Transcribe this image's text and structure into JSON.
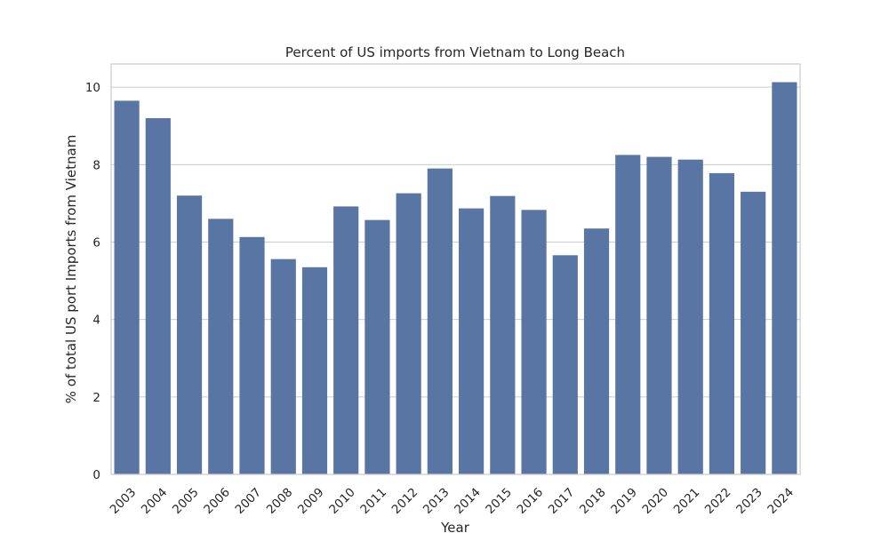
{
  "chart_data": {
    "type": "bar",
    "title": "Percent of US imports from Vietnam to Long Beach",
    "xlabel": "Year",
    "ylabel": "% of total US port Imports from Vietnam",
    "categories": [
      "2003",
      "2004",
      "2005",
      "2006",
      "2007",
      "2008",
      "2009",
      "2010",
      "2011",
      "2012",
      "2013",
      "2014",
      "2015",
      "2016",
      "2017",
      "2018",
      "2019",
      "2020",
      "2021",
      "2022",
      "2023",
      "2024"
    ],
    "values": [
      9.65,
      9.2,
      7.2,
      6.6,
      6.13,
      5.56,
      5.35,
      6.92,
      6.57,
      7.26,
      7.9,
      6.87,
      7.19,
      6.83,
      5.66,
      6.35,
      8.25,
      8.2,
      8.13,
      7.78,
      7.3,
      10.13
    ],
    "ylim": [
      0,
      10.6
    ],
    "yticks": [
      0,
      2,
      4,
      6,
      8,
      10
    ],
    "grid": true,
    "bar_color": "#5875a4",
    "grid_color": "#cccccc"
  }
}
